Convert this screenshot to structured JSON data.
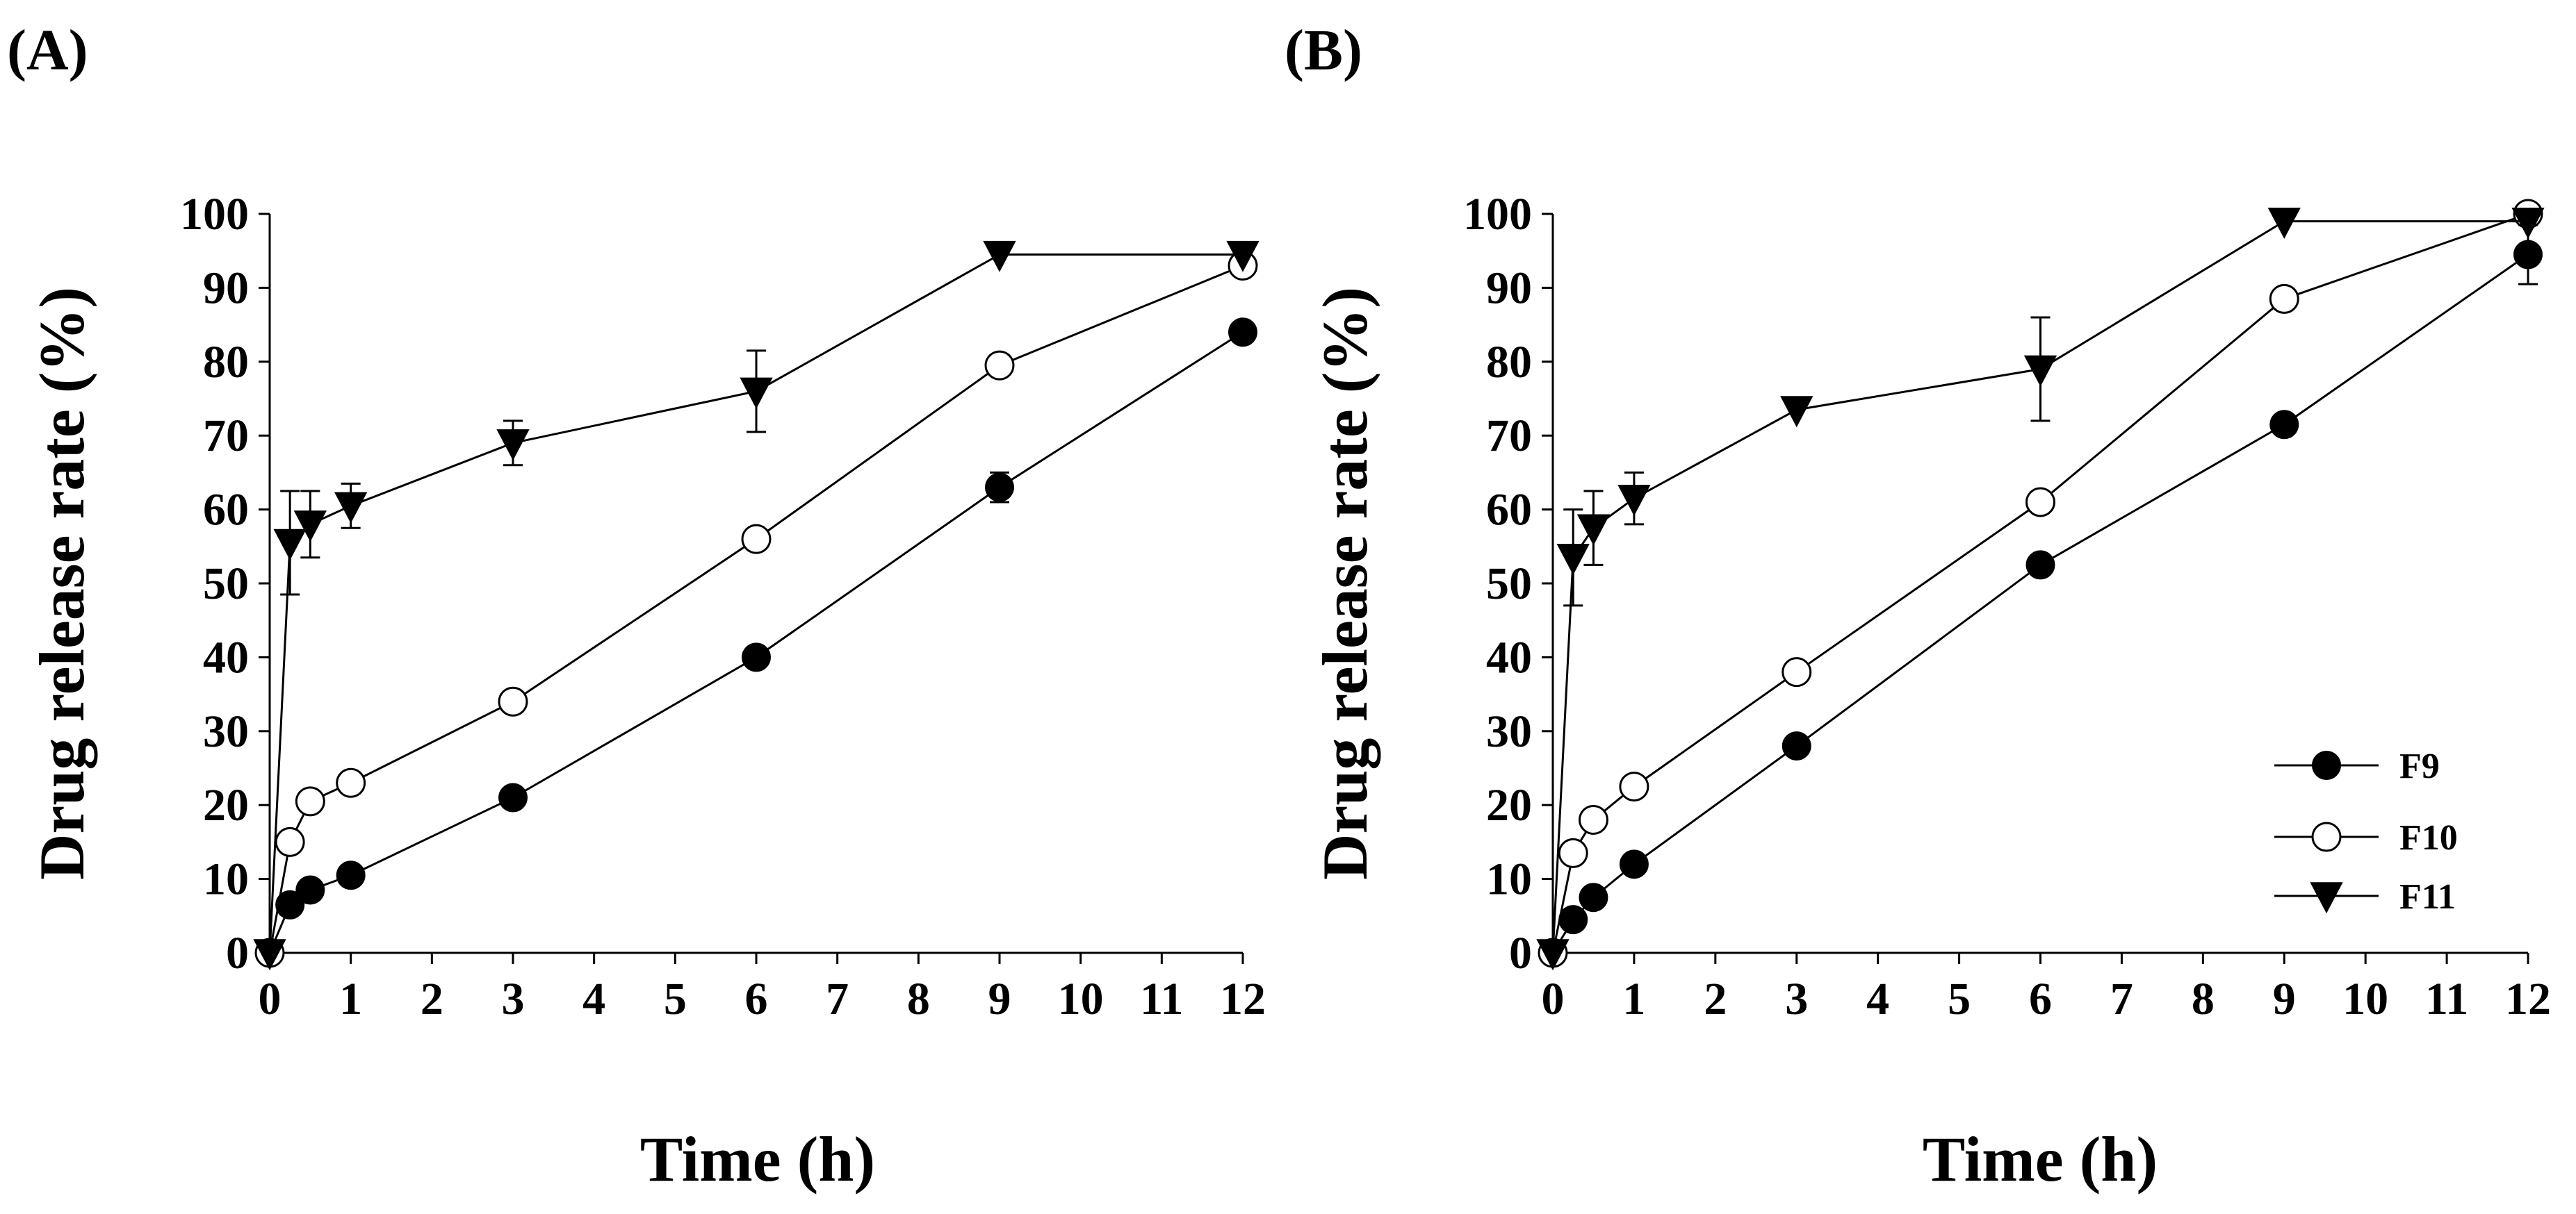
{
  "chart_data": [
    {
      "panel_label": "(A)",
      "type": "line",
      "xlabel": "Time (h)",
      "ylabel": "Drug release rate (%)",
      "xlim": [
        0,
        12
      ],
      "ylim": [
        0,
        100
      ],
      "xticks": [
        0,
        1,
        2,
        3,
        4,
        5,
        6,
        7,
        8,
        9,
        10,
        11,
        12
      ],
      "yticks": [
        0,
        10,
        20,
        30,
        40,
        50,
        60,
        70,
        80,
        90,
        100
      ],
      "grid": false,
      "x": [
        0,
        0.25,
        0.5,
        1,
        3,
        6,
        9,
        12
      ],
      "series": [
        {
          "name": "F9",
          "marker": "filled-circle",
          "values": [
            0,
            6.5,
            8.5,
            10.5,
            21,
            40,
            63,
            84
          ],
          "errors": [
            0,
            0,
            0,
            0,
            0,
            0,
            2,
            0
          ]
        },
        {
          "name": "F10",
          "marker": "open-circle",
          "values": [
            0,
            15,
            20.5,
            23,
            34,
            56,
            79.5,
            93
          ],
          "errors": [
            0,
            0,
            0,
            0,
            0,
            0,
            0,
            0
          ]
        },
        {
          "name": "F11",
          "marker": "filled-down-triangle",
          "values": [
            0,
            55.5,
            58,
            60.5,
            69,
            76,
            94.5,
            94.5
          ],
          "errors": [
            0,
            7,
            4.5,
            3,
            3,
            5.5,
            0,
            0
          ]
        }
      ],
      "legend": null
    },
    {
      "panel_label": "(B)",
      "type": "line",
      "xlabel": "Time (h)",
      "ylabel": "Drug release rate (%)",
      "xlim": [
        0,
        12
      ],
      "ylim": [
        0,
        100
      ],
      "xticks": [
        0,
        1,
        2,
        3,
        4,
        5,
        6,
        7,
        8,
        9,
        10,
        11,
        12
      ],
      "yticks": [
        0,
        10,
        20,
        30,
        40,
        50,
        60,
        70,
        80,
        90,
        100
      ],
      "grid": false,
      "x": [
        0,
        0.25,
        0.5,
        1,
        3,
        6,
        9,
        12
      ],
      "series": [
        {
          "name": "F9",
          "marker": "filled-circle",
          "values": [
            0,
            4.5,
            7.5,
            12,
            28,
            52.5,
            71.5,
            94.5
          ],
          "errors": [
            0,
            0,
            0,
            0,
            0,
            0,
            0,
            4
          ]
        },
        {
          "name": "F10",
          "marker": "open-circle",
          "values": [
            0,
            13.5,
            18,
            22.5,
            38,
            61,
            88.5,
            100
          ],
          "errors": [
            0,
            0,
            0,
            0,
            0,
            0,
            0,
            0
          ]
        },
        {
          "name": "F11",
          "marker": "filled-down-triangle",
          "values": [
            0,
            53.5,
            57.5,
            61.5,
            73.5,
            79,
            99,
            99
          ],
          "errors": [
            0,
            6.5,
            5,
            3.5,
            0,
            7,
            0,
            0
          ]
        }
      ],
      "legend": {
        "placement": "bottom-right",
        "entries": [
          "F9",
          "F10",
          "F11"
        ]
      }
    }
  ],
  "colors": {
    "line": "#000000",
    "background": "#ffffff"
  }
}
